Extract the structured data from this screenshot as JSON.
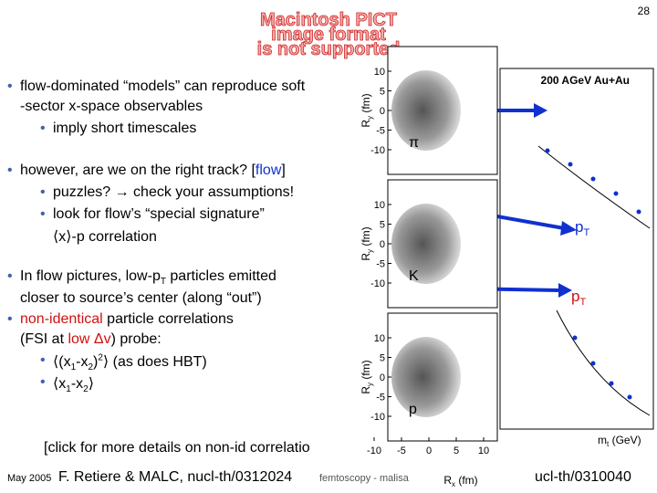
{
  "page_number": "28",
  "placeholder": [
    "Macintosh PICT",
    "image format",
    "is not supported"
  ],
  "lines": [
    [
      "flow-dominated “models” can reproduce soft"
    ],
    [
      "-sector x-space observables"
    ],
    [
      "imply short timescales"
    ],
    [
      "however, are we on the right track? [",
      "flow",
      "]"
    ],
    [
      "puzzles? → check your assumptions!"
    ],
    [
      "look for flow’s “special signature”"
    ],
    [
      "⟨x⟩-p correlation"
    ],
    [
      "In flow pictures, low-p",
      "T",
      " particles emitted"
    ],
    [
      "closer to source’s center (along “out”)"
    ],
    [
      "non-identical",
      " particle correlations"
    ],
    [
      "(FSI at ",
      "low Δv",
      ") probe:"
    ],
    [
      "⟨(x",
      "1",
      "-x",
      "2",
      ")",
      "2",
      "⟩ (as does HBT)"
    ],
    [
      "⟨x",
      "1",
      "-x",
      "2",
      "⟩"
    ]
  ],
  "click_text": "[click for more details on non-id correlatio",
  "plot": {
    "title": "200 AGeV Au+Au",
    "panels": [
      "π",
      "K",
      "p"
    ],
    "y_label": [
      "R",
      "y",
      " (fm)"
    ],
    "x_label": [
      "R",
      "x",
      " (fm)"
    ],
    "right_x_label": [
      "m",
      "t",
      " (GeV)"
    ],
    "pt_label": [
      "p",
      "T"
    ],
    "yticks": [
      10,
      5,
      0,
      -5,
      -10
    ],
    "xticks": [
      -10,
      -5,
      0,
      5,
      10
    ]
  },
  "footer": {
    "date": "May 2005",
    "citation": "F. Retiere & MALC, nucl-th/0312024",
    "title": "femtoscopy - malisa",
    "right_citation": "ucl-th/0310040"
  }
}
